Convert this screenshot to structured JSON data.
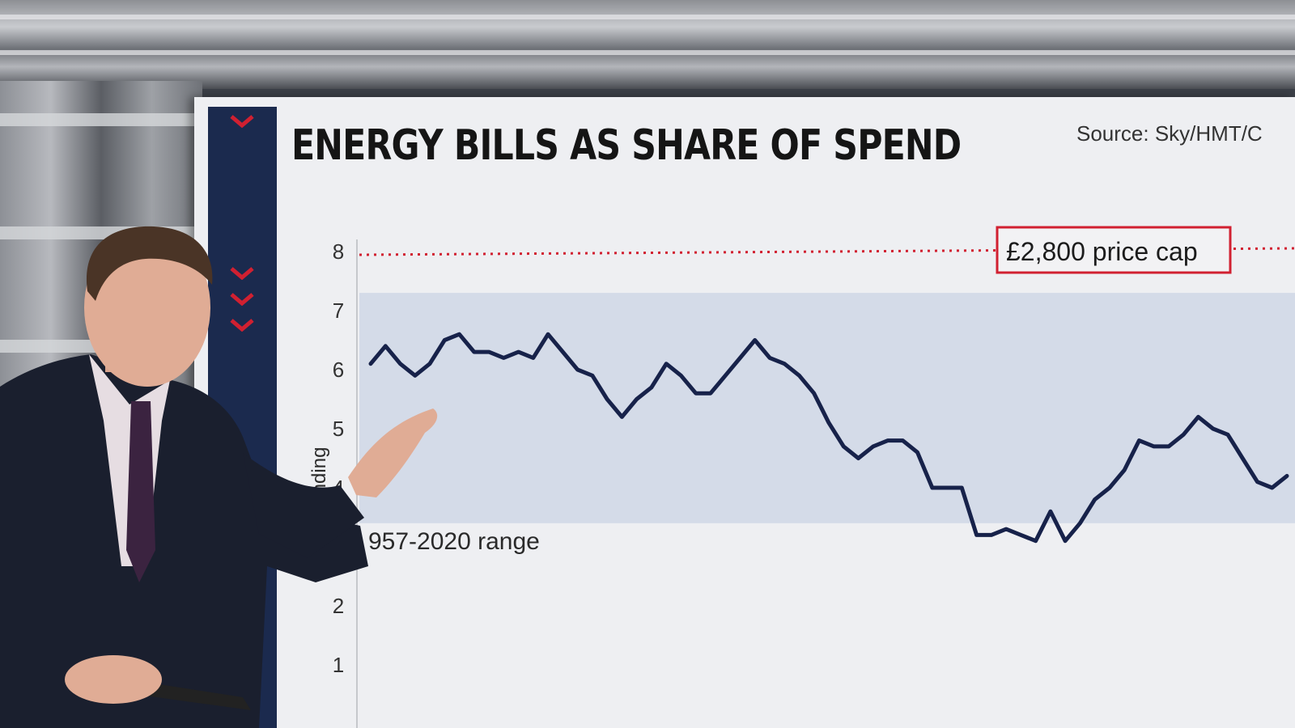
{
  "chart_data": {
    "type": "line",
    "title": "ENERGY BILLS AS SHARE OF SPEND",
    "source": "Source: Sky/HMT/C",
    "ylabel": "spending",
    "ylim": [
      0,
      8
    ],
    "yticks": [
      1,
      2,
      4,
      5,
      6,
      7,
      8
    ],
    "grid": false,
    "reference_line": {
      "value": 8,
      "label": "£2,800 price cap",
      "color": "#d12031"
    },
    "range_band": {
      "from": 3.4,
      "to": 7.3,
      "label": "957-2020 range",
      "color": "#d4dbe8"
    },
    "series": [
      {
        "color": "#17224a",
        "values": [
          6.1,
          6.4,
          6.1,
          5.9,
          6.1,
          6.5,
          6.6,
          6.3,
          6.3,
          6.2,
          6.3,
          6.2,
          6.6,
          6.3,
          6.0,
          5.9,
          5.5,
          5.2,
          5.5,
          5.7,
          6.1,
          5.9,
          5.6,
          5.6,
          5.9,
          6.2,
          6.5,
          6.2,
          6.1,
          5.9,
          5.6,
          5.1,
          4.7,
          4.5,
          4.7,
          4.8,
          4.8,
          4.6,
          4.0,
          4.0,
          4.0,
          3.2,
          3.2,
          3.3,
          3.2,
          3.1,
          3.6,
          3.1,
          3.4,
          3.8,
          4.0,
          4.3,
          4.8,
          4.7,
          4.7,
          4.9,
          5.2,
          5.0,
          4.9,
          4.5,
          4.1,
          4.0,
          4.2
        ]
      }
    ]
  }
}
